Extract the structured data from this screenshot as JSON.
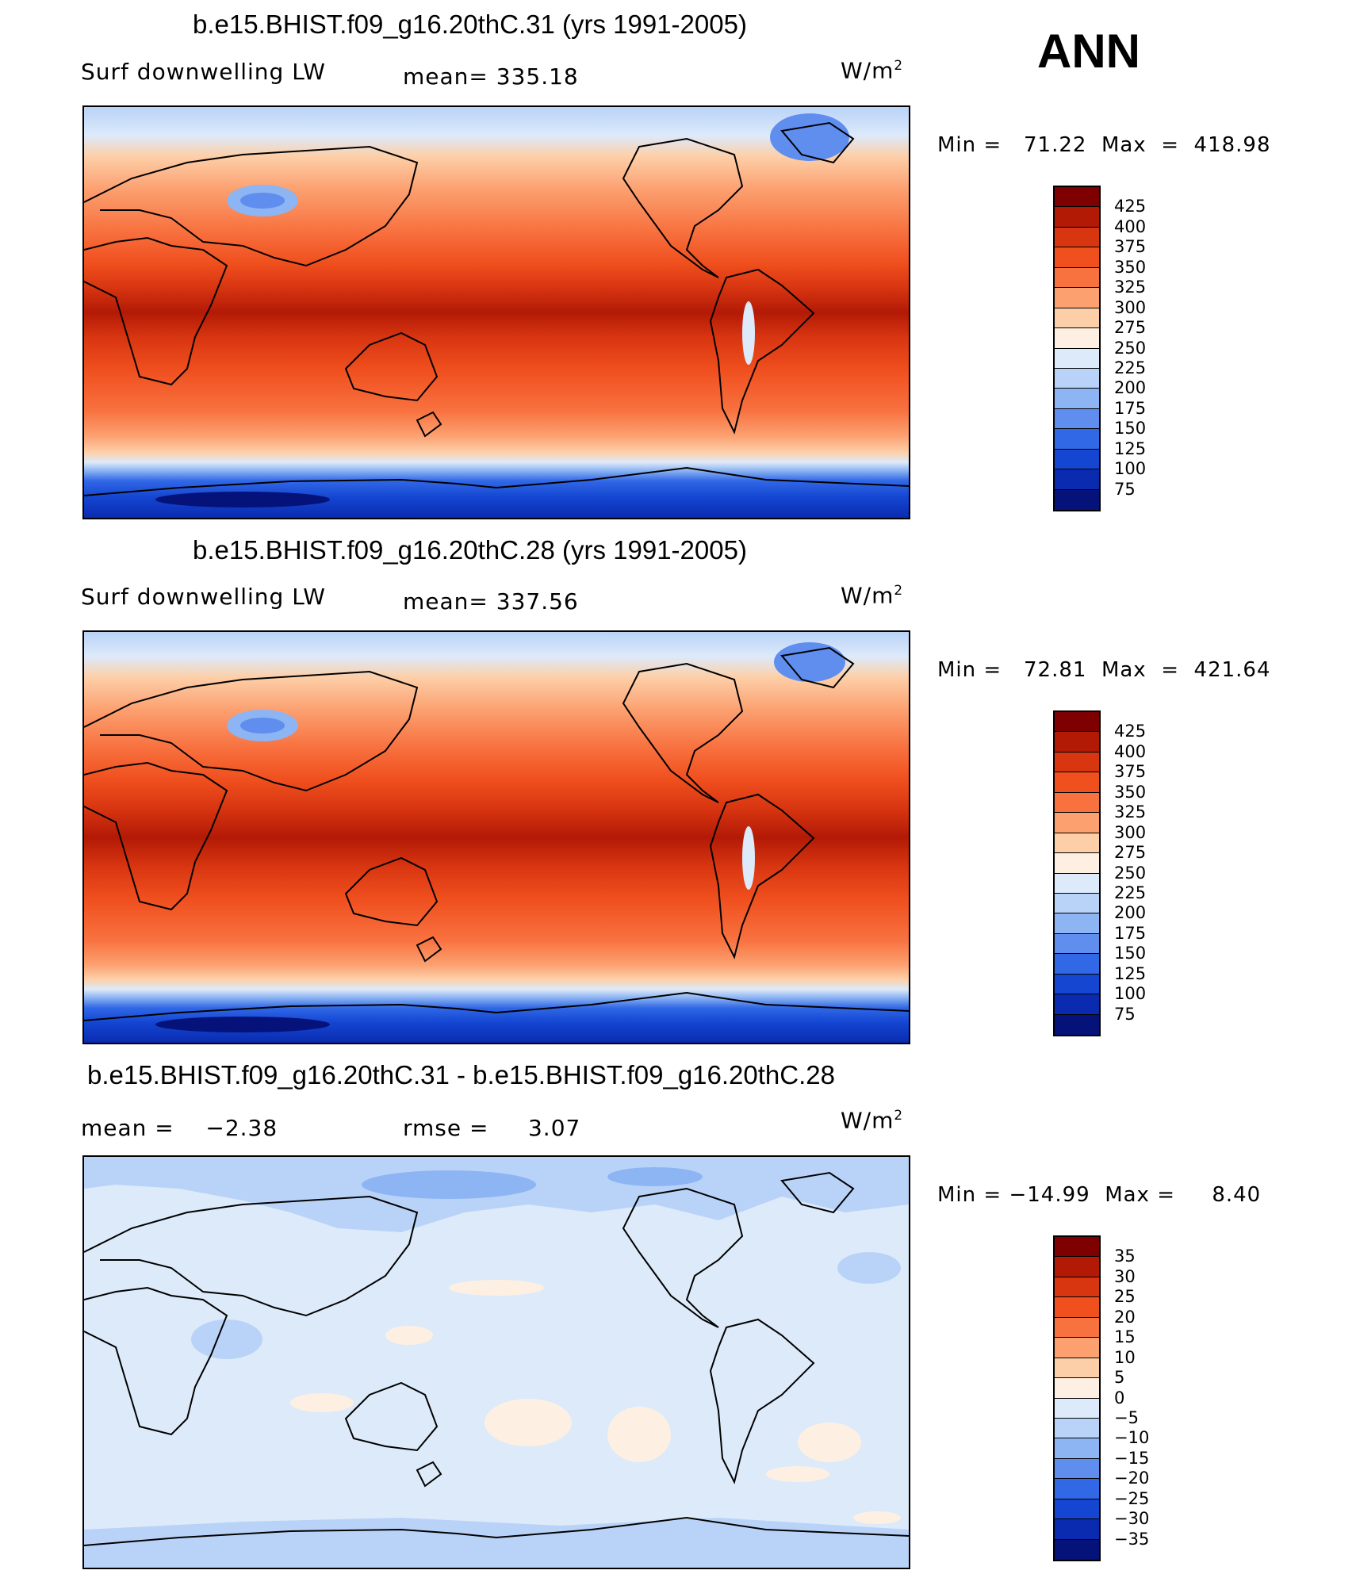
{
  "season": "ANN",
  "units_base": "W/m",
  "units_exp": "2",
  "panels": [
    {
      "title": "b.e15.BHIST.f09_g16.20thC.31 (yrs 1991-2005)",
      "variable": "Surf downwelling LW",
      "stat1": "mean= 335.18",
      "stat2": "",
      "minmax": "Min =   71.22  Max  =  418.98",
      "levels": [
        "425",
        "400",
        "375",
        "350",
        "325",
        "300",
        "275",
        "250",
        "225",
        "200",
        "175",
        "150",
        "125",
        "100",
        "75"
      ],
      "colors": [
        "#7f0000",
        "#b21a06",
        "#d83511",
        "#f04f1e",
        "#f87240",
        "#fca070",
        "#fdcfa8",
        "#fdf0e2",
        "#ddeafa",
        "#b9d3f8",
        "#8db4f3",
        "#5f8eef",
        "#3168e6",
        "#1446d2",
        "#0a2bb0",
        "#04127a"
      ]
    },
    {
      "title": "b.e15.BHIST.f09_g16.20thC.28 (yrs 1991-2005)",
      "variable": "Surf downwelling LW",
      "stat1": "mean= 337.56",
      "stat2": "",
      "minmax": "Min =   72.81  Max  =  421.64",
      "levels": [
        "425",
        "400",
        "375",
        "350",
        "325",
        "300",
        "275",
        "250",
        "225",
        "200",
        "175",
        "150",
        "125",
        "100",
        "75"
      ],
      "colors": [
        "#7f0000",
        "#b21a06",
        "#d83511",
        "#f04f1e",
        "#f87240",
        "#fca070",
        "#fdcfa8",
        "#fdf0e2",
        "#ddeafa",
        "#b9d3f8",
        "#8db4f3",
        "#5f8eef",
        "#3168e6",
        "#1446d2",
        "#0a2bb0",
        "#04127a"
      ]
    },
    {
      "title": "b.e15.BHIST.f09_g16.20thC.31 - b.e15.BHIST.f09_g16.20thC.28",
      "variable": "",
      "stat1": "mean =    −2.38",
      "stat2": "rmse =     3.07",
      "minmax": "Min = −14.99  Max =     8.40",
      "levels": [
        "35",
        "30",
        "25",
        "20",
        "15",
        "10",
        "5",
        "0",
        "−5",
        "−10",
        "−15",
        "−20",
        "−25",
        "−30",
        "−35"
      ],
      "colors": [
        "#7f0000",
        "#b21a06",
        "#d83511",
        "#f04f1e",
        "#f87240",
        "#fca070",
        "#fdcfa8",
        "#fdf0e2",
        "#ddeafa",
        "#b9d3f8",
        "#8db4f3",
        "#5f8eef",
        "#3168e6",
        "#1446d2",
        "#0a2bb0",
        "#04127a"
      ]
    }
  ]
}
